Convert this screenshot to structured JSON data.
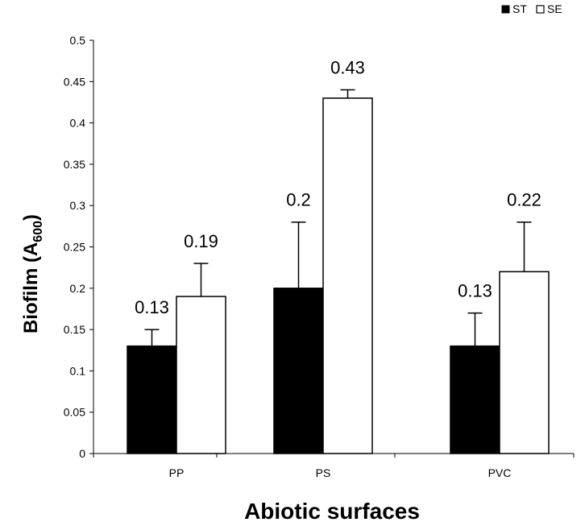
{
  "chart_data": {
    "type": "bar",
    "categories": [
      "PP",
      "PS",
      "PVC"
    ],
    "series": [
      {
        "name": "ST",
        "values": [
          0.13,
          0.2,
          0.13
        ],
        "errors": [
          0.02,
          0.08,
          0.04
        ],
        "color": "#000000"
      },
      {
        "name": "SE",
        "values": [
          0.19,
          0.43,
          0.22
        ],
        "errors": [
          0.04,
          0.01,
          0.06
        ],
        "color": "#ffffff"
      }
    ],
    "value_labels": [
      [
        "0.13",
        "0.2",
        "0.13"
      ],
      [
        "0.19",
        "0.43",
        "0.22"
      ]
    ],
    "yticks": [
      "0",
      "0.05",
      "0.1",
      "0.15",
      "0.2",
      "0.25",
      "0.3",
      "0.35",
      "0.4",
      "0.45",
      "0.5"
    ],
    "ylim": [
      0,
      0.5
    ],
    "xlabel": "Abiotic surfaces",
    "ylabel_main": "Biofilm (A",
    "ylabel_sub": "600",
    "ylabel_end": ")",
    "legend_position": "top-right",
    "grid": false
  }
}
